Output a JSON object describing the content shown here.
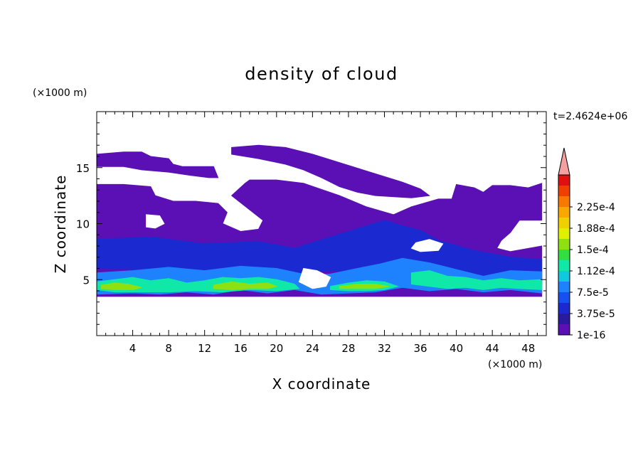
{
  "chart_data": {
    "type": "heatmap",
    "title": "density of cloud",
    "xlabel": "X coordinate",
    "ylabel": "Z coordinate",
    "x_unit": "(×1000 m)",
    "y_unit": "(×1000 m)",
    "time_label": "t=2.4624e+06",
    "xlim": [
      0,
      50
    ],
    "ylim": [
      0,
      20
    ],
    "xticks": [
      4,
      8,
      12,
      16,
      20,
      24,
      28,
      32,
      36,
      40,
      44,
      48
    ],
    "yticks": [
      5,
      10,
      15
    ],
    "colorbar": {
      "labels": [
        "1e-16",
        "3.75e-5",
        "7.5e-5",
        "1.12e-4",
        "1.5e-4",
        "1.88e-4",
        "2.25e-4"
      ],
      "colors": [
        "#5a10b4",
        "#2a1aa0",
        "#1a2ad0",
        "#1650f0",
        "#1e82ff",
        "#10c8e0",
        "#10e8a8",
        "#30e040",
        "#90e010",
        "#e0f000",
        "#f0d000",
        "#f8a800",
        "#f87800",
        "#f04000",
        "#e01010",
        "#f4a0a0"
      ],
      "overflow_color": "#f4a0a0"
    },
    "regions": [
      {
        "level": "1e-16",
        "x": [
          0,
          3,
          5,
          6,
          8,
          8.5,
          9.5,
          11,
          13,
          13.5,
          12.5,
          10.5,
          8,
          5,
          3,
          0
        ],
        "z": [
          16.2,
          16.4,
          16.4,
          16,
          15.8,
          15.3,
          15.1,
          15.1,
          15.1,
          14.1,
          14.1,
          14.3,
          14.6,
          14.8,
          15.1,
          15.1
        ]
      },
      {
        "level": "1e-16",
        "x": [
          15,
          18,
          21,
          24,
          28,
          32,
          34,
          36,
          37,
          35,
          31,
          29,
          27,
          25,
          23,
          21,
          18,
          15
        ],
        "z": [
          16.8,
          17,
          16.8,
          16.2,
          15.2,
          14.2,
          13.7,
          13.1,
          12.5,
          12.3,
          12.5,
          12.8,
          13.3,
          14.1,
          14.8,
          15.3,
          15.8,
          16.2
        ]
      },
      {
        "level": "1e-16",
        "x": [
          0,
          3,
          6,
          6.5,
          8.5,
          11,
          13.5,
          14.5,
          14,
          16,
          18,
          18.5,
          15,
          16.5,
          17,
          20,
          23,
          27,
          30,
          33,
          35,
          38,
          39.5,
          40,
          42,
          43,
          44,
          46,
          48,
          49.5,
          49.5,
          47,
          46,
          45,
          44.5,
          46,
          49.5,
          49.5,
          40,
          30,
          20,
          10,
          0
        ],
        "z": [
          13.5,
          13.5,
          13.3,
          12.5,
          12,
          12,
          11.8,
          11,
          10,
          9.3,
          9.5,
          10.3,
          12.5,
          13.6,
          13.9,
          13.9,
          13.6,
          12.5,
          11.5,
          10.8,
          11.5,
          12.2,
          12.2,
          13.5,
          13.2,
          12.8,
          13.4,
          13.4,
          13.2,
          13.6,
          10.3,
          10.3,
          9.2,
          8.5,
          7.8,
          7.5,
          8,
          3.5,
          3.5,
          3.5,
          3.5,
          3.5,
          3.5
        ]
      },
      {
        "level": "3.75e-5",
        "x": [
          0,
          6,
          12,
          18,
          22,
          26,
          30,
          32,
          34,
          36,
          38,
          42,
          46,
          49.5,
          49.5,
          44,
          38,
          32,
          26,
          20,
          14,
          8,
          0
        ],
        "z": [
          8.6,
          8.8,
          8.2,
          8.4,
          7.8,
          8.8,
          9.8,
          10.3,
          9.8,
          9.4,
          8.5,
          7.6,
          7,
          6.8,
          4.6,
          4.5,
          5,
          5.5,
          5.8,
          5.4,
          5.6,
          5.9,
          6
        ]
      },
      {
        "level": "7.5e-5",
        "x": [
          0,
          4,
          8,
          12,
          16,
          20,
          23.5,
          26,
          29,
          31.5,
          34,
          37,
          40,
          43,
          46,
          49.5,
          49.5,
          46,
          43,
          40,
          37,
          34,
          31,
          28,
          25,
          22,
          19,
          16,
          13,
          10,
          7,
          4,
          0
        ],
        "z": [
          5.6,
          5.8,
          6.1,
          5.8,
          6.2,
          6,
          5.4,
          5.5,
          6,
          6.4,
          6.9,
          6.5,
          5.9,
          5.3,
          5.8,
          5.7,
          3.8,
          4.1,
          3.9,
          4.2,
          4,
          4.3,
          3.9,
          3.8,
          3.7,
          4.1,
          3.8,
          4.1,
          3.7,
          3.9,
          3.7,
          3.8,
          3.7
        ]
      },
      {
        "level": "1.12e-4",
        "x": [
          0,
          2,
          4,
          6,
          8,
          10,
          12,
          14,
          16,
          18,
          20,
          22,
          22.5,
          20,
          17,
          14,
          11,
          8,
          5,
          2,
          0
        ],
        "z": [
          4.8,
          5,
          5.2,
          4.9,
          5.1,
          4.7,
          4.9,
          5.2,
          5.1,
          5.2,
          5,
          4.6,
          4.2,
          4,
          4.1,
          3.9,
          4,
          3.9,
          3.9,
          3.9,
          4.1
        ]
      },
      {
        "level": "1.12e-4",
        "x": [
          26,
          28,
          30,
          32,
          33.5,
          32,
          30,
          28,
          26
        ],
        "z": [
          4.4,
          4.7,
          4.9,
          4.8,
          4.4,
          4.1,
          4,
          4,
          4.1
        ]
      },
      {
        "level": "1.12e-4",
        "x": [
          35,
          37,
          39,
          41,
          43,
          45,
          47,
          49.5,
          49.5,
          47,
          45,
          43,
          41,
          39,
          37,
          35
        ],
        "z": [
          5.6,
          5.8,
          5.3,
          5.2,
          4.9,
          5.1,
          4.9,
          5,
          4.1,
          4.2,
          4.3,
          4.1,
          4.3,
          4.2,
          4.4,
          4.6
        ]
      },
      {
        "level": "1.5e-4",
        "x": [
          0.5,
          2,
          3.5,
          5,
          4,
          2,
          0.5
        ],
        "z": [
          4.5,
          4.7,
          4.6,
          4.3,
          4.1,
          4.1,
          4.2
        ]
      },
      {
        "level": "1.5e-4",
        "x": [
          13,
          15,
          17,
          19,
          20,
          19,
          17,
          15,
          13
        ],
        "z": [
          4.5,
          4.8,
          4.6,
          4.7,
          4.4,
          4.2,
          4.2,
          4.1,
          4.2
        ]
      },
      {
        "level": "1.5e-4",
        "x": [
          27,
          29,
          31,
          32.5,
          31,
          29,
          27
        ],
        "z": [
          4.4,
          4.6,
          4.6,
          4.4,
          4.2,
          4.2,
          4.2
        ]
      },
      {
        "level": "1e-16",
        "x": [
          23,
          24.5,
          26,
          25.5,
          24,
          22.5
        ],
        "z": [
          6,
          5.8,
          5.2,
          4.4,
          4.2,
          4.8
        ],
        "blank": true
      },
      {
        "level": "1e-16",
        "x": [
          35.5,
          37,
          38.5,
          38,
          36,
          35
        ],
        "z": [
          8.3,
          8.6,
          8.2,
          7.6,
          7.5,
          7.8
        ],
        "blank": true
      },
      {
        "level": "1e-16",
        "x": [
          5.5,
          7,
          7.5,
          6.5,
          5.5
        ],
        "z": [
          10.8,
          10.7,
          10,
          9.6,
          9.7
        ],
        "blank": true
      }
    ]
  }
}
